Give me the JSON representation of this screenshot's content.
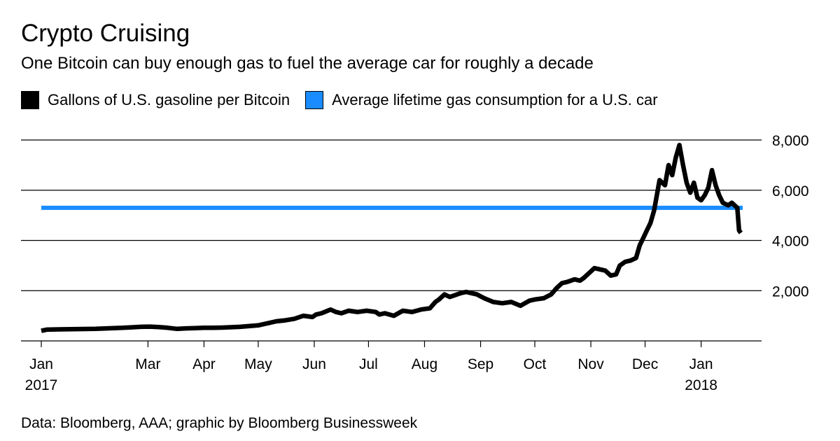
{
  "title": "Crypto Cruising",
  "subtitle": "One Bitcoin can buy enough gas to fuel the average car for roughly a decade",
  "legend": [
    {
      "label": "Gallons of U.S. gasoline per Bitcoin",
      "color": "#000000"
    },
    {
      "label": "Average lifetime gas consumption for a U.S. car",
      "color": "#1a8cff"
    }
  ],
  "source": "Data: Bloomberg, AAA; graphic by Bloomberg Businessweek",
  "chart_data": {
    "type": "line",
    "title": "Crypto Cruising",
    "xlabel": "",
    "ylabel": "",
    "ylim": [
      0,
      8000
    ],
    "xlim": [
      0,
      388
    ],
    "x_unit": "days since 2017-01-01",
    "y_ticks": [
      {
        "value": 2000,
        "label": "2,000"
      },
      {
        "value": 4000,
        "label": "4,000"
      },
      {
        "value": 6000,
        "label": "6,000"
      },
      {
        "value": 8000,
        "label": "8,000"
      }
    ],
    "x_ticks": [
      {
        "value": 0,
        "label": "Jan",
        "sublabel": "2017"
      },
      {
        "value": 59,
        "label": "Mar",
        "sublabel": ""
      },
      {
        "value": 90,
        "label": "Apr",
        "sublabel": ""
      },
      {
        "value": 120,
        "label": "May",
        "sublabel": ""
      },
      {
        "value": 151,
        "label": "Jun",
        "sublabel": ""
      },
      {
        "value": 181,
        "label": "Jul",
        "sublabel": ""
      },
      {
        "value": 212,
        "label": "Aug",
        "sublabel": ""
      },
      {
        "value": 243,
        "label": "Sep",
        "sublabel": ""
      },
      {
        "value": 273,
        "label": "Oct",
        "sublabel": ""
      },
      {
        "value": 304,
        "label": "Nov",
        "sublabel": ""
      },
      {
        "value": 334,
        "label": "Dec",
        "sublabel": ""
      },
      {
        "value": 365,
        "label": "Jan",
        "sublabel": "2018"
      }
    ],
    "grid": true,
    "series": [
      {
        "name": "Gallons of U.S. gasoline per Bitcoin",
        "color": "#000000",
        "x": [
          0,
          3,
          10,
          20,
          30,
          40,
          45,
          50,
          55,
          60,
          65,
          70,
          75,
          80,
          85,
          90,
          95,
          100,
          110,
          120,
          125,
          130,
          135,
          140,
          145,
          150,
          152,
          155,
          160,
          163,
          166,
          170,
          175,
          180,
          185,
          187,
          190,
          195,
          200,
          205,
          210,
          215,
          218,
          220,
          223,
          226,
          228,
          232,
          235,
          238,
          241,
          245,
          250,
          255,
          260,
          265,
          270,
          273,
          278,
          282,
          285,
          288,
          291,
          295,
          298,
          300,
          303,
          306,
          309,
          312,
          315,
          318,
          320,
          323,
          326,
          329,
          331,
          333,
          335,
          337,
          339,
          342,
          345,
          347,
          349,
          351,
          353,
          355,
          357,
          359,
          361,
          363,
          365,
          367,
          369,
          371,
          373,
          375,
          377,
          380,
          382,
          385,
          386,
          387
        ],
        "values": [
          400,
          450,
          460,
          470,
          480,
          510,
          520,
          540,
          560,
          570,
          550,
          520,
          480,
          500,
          510,
          520,
          520,
          530,
          560,
          620,
          700,
          780,
          820,
          880,
          1000,
          950,
          1050,
          1100,
          1250,
          1150,
          1100,
          1200,
          1150,
          1200,
          1150,
          1050,
          1100,
          1000,
          1200,
          1150,
          1250,
          1300,
          1550,
          1650,
          1850,
          1750,
          1800,
          1900,
          1950,
          1900,
          1850,
          1700,
          1550,
          1500,
          1550,
          1400,
          1600,
          1650,
          1700,
          1850,
          2100,
          2300,
          2350,
          2450,
          2400,
          2500,
          2700,
          2900,
          2850,
          2800,
          2600,
          2650,
          3000,
          3150,
          3200,
          3300,
          3800,
          4100,
          4400,
          4700,
          5200,
          6400,
          6200,
          7000,
          6600,
          7300,
          7800,
          7000,
          6300,
          5900,
          6300,
          5700,
          5600,
          5800,
          6100,
          6800,
          6200,
          5800,
          5500,
          5400,
          5500,
          5300,
          4400,
          4300
        ]
      },
      {
        "name": "Average lifetime gas consumption for a U.S. car",
        "color": "#1a8cff",
        "x": [
          0,
          388
        ],
        "values": [
          5300,
          5300
        ]
      }
    ]
  }
}
